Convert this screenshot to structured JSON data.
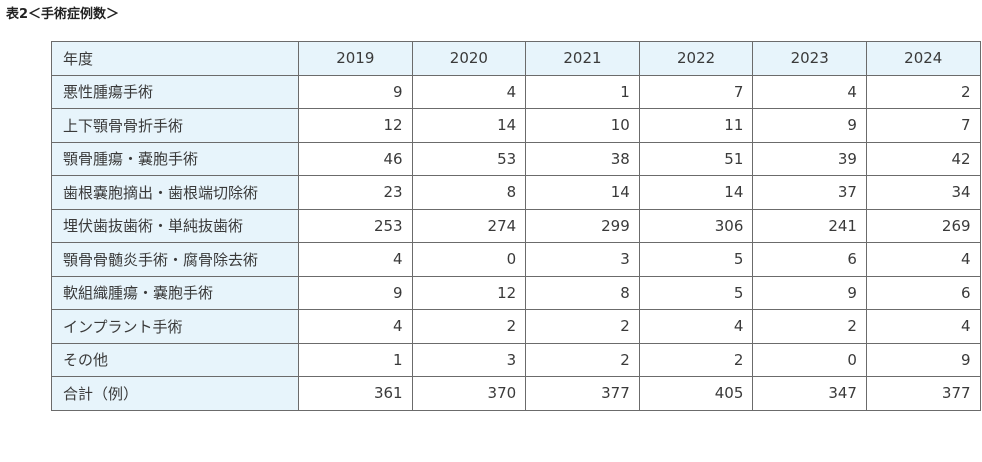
{
  "caption": "表2＜手術症例数＞",
  "table": {
    "header_label": "年度",
    "years": [
      "2019",
      "2020",
      "2021",
      "2022",
      "2023",
      "2024"
    ],
    "rows": [
      {
        "label": "悪性腫瘍手術",
        "values": [
          "9",
          "4",
          "1",
          "7",
          "4",
          "2"
        ]
      },
      {
        "label": "上下顎骨骨折手術",
        "values": [
          "12",
          "14",
          "10",
          "11",
          "9",
          "7"
        ]
      },
      {
        "label": "顎骨腫瘍・嚢胞手術",
        "values": [
          "46",
          "53",
          "38",
          "51",
          "39",
          "42"
        ]
      },
      {
        "label": "歯根嚢胞摘出・歯根端切除術",
        "values": [
          "23",
          "8",
          "14",
          "14",
          "37",
          "34"
        ]
      },
      {
        "label": "埋伏歯抜歯術・単純抜歯術",
        "values": [
          "253",
          "274",
          "299",
          "306",
          "241",
          "269"
        ]
      },
      {
        "label": "顎骨骨髄炎手術・腐骨除去術",
        "values": [
          "4",
          "0",
          "3",
          "5",
          "6",
          "4"
        ]
      },
      {
        "label": "軟組織腫瘍・嚢胞手術",
        "values": [
          "9",
          "12",
          "8",
          "5",
          "9",
          "6"
        ]
      },
      {
        "label": "インプラント手術",
        "values": [
          "4",
          "2",
          "2",
          "4",
          "2",
          "4"
        ]
      },
      {
        "label": "その他",
        "values": [
          "1",
          "3",
          "2",
          "2",
          "0",
          "9"
        ]
      },
      {
        "label": "合計（例）",
        "values": [
          "361",
          "370",
          "377",
          "405",
          "347",
          "377"
        ]
      }
    ]
  },
  "colors": {
    "label_cell_background": "#e7f4fb",
    "border": "#6b6b6b"
  }
}
